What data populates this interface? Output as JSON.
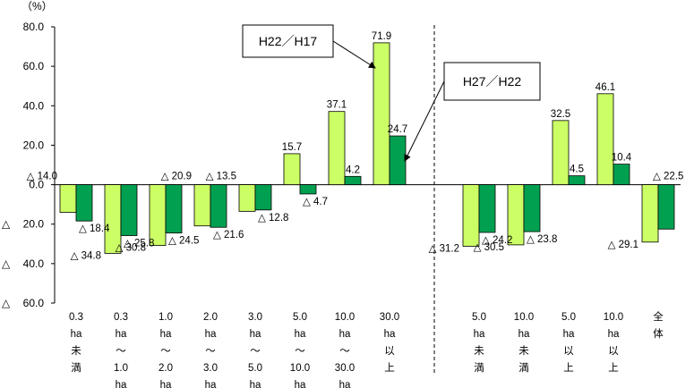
{
  "chart_data": {
    "type": "bar",
    "unit_label": "（%）",
    "ylim": [
      -60,
      80
    ],
    "yticks": [
      80,
      60,
      40,
      20,
      0,
      -20,
      -40,
      -60
    ],
    "ytick_labels": [
      "80.0",
      "60.0",
      "40.0",
      "20.0",
      "0.0",
      "△ 20.0",
      "△ 40.0",
      "△ 60.0"
    ],
    "grid": false,
    "categories": [
      [
        "0.3",
        "ha",
        "未",
        "満"
      ],
      [
        "0.3",
        "ha",
        "～",
        "1.0",
        "ha"
      ],
      [
        "1.0",
        "ha",
        "～",
        "2.0",
        "ha"
      ],
      [
        "2.0",
        "ha",
        "～",
        "3.0",
        "ha"
      ],
      [
        "3.0",
        "ha",
        "～",
        "5.0",
        "ha"
      ],
      [
        "5.0",
        "ha",
        "～",
        "10.0",
        "ha"
      ],
      [
        "10.0",
        "ha",
        "～",
        "30.0",
        "ha"
      ],
      [
        "30.0",
        "ha",
        "以",
        "上"
      ],
      [
        "5.0",
        "ha",
        "未",
        "満"
      ],
      [
        "10.0",
        "ha",
        "未",
        "満"
      ],
      [
        "5.0",
        "ha",
        "以",
        "上"
      ],
      [
        "10.0",
        "ha",
        "以",
        "上"
      ],
      [
        "全",
        "体"
      ]
    ],
    "series": [
      {
        "name": "H22／H17",
        "color": "#ccff66",
        "values": [
          -14.0,
          -34.8,
          -30.8,
          -20.9,
          -13.5,
          15.7,
          37.1,
          71.9,
          -31.2,
          -30.5,
          32.5,
          46.1,
          -29.1
        ],
        "labels": [
          "△ 14.0",
          "△ 34.8",
          "△ 30.8",
          "△ 20.9",
          "△ 13.5",
          "15.7",
          "37.1",
          "71.9",
          "△ 31.2",
          "△ 30.5",
          "32.5",
          "46.1",
          "△ 29.1"
        ]
      },
      {
        "name": "H27／H22",
        "color": "#00a050",
        "values": [
          -18.4,
          -25.8,
          -24.5,
          -21.6,
          -12.8,
          -4.7,
          4.2,
          24.7,
          -24.2,
          -23.8,
          4.5,
          10.4,
          -22.5
        ],
        "labels": [
          "△ 18.4",
          "△ 25.8",
          "△ 24.5",
          "△ 21.6",
          "△ 12.8",
          "△ 4.7",
          "4.2",
          "24.7",
          "△ 24.2",
          "△ 23.8",
          "4.5",
          "10.4",
          "△ 22.5"
        ]
      }
    ],
    "divider_after_index": 7,
    "legend": "callouts"
  }
}
